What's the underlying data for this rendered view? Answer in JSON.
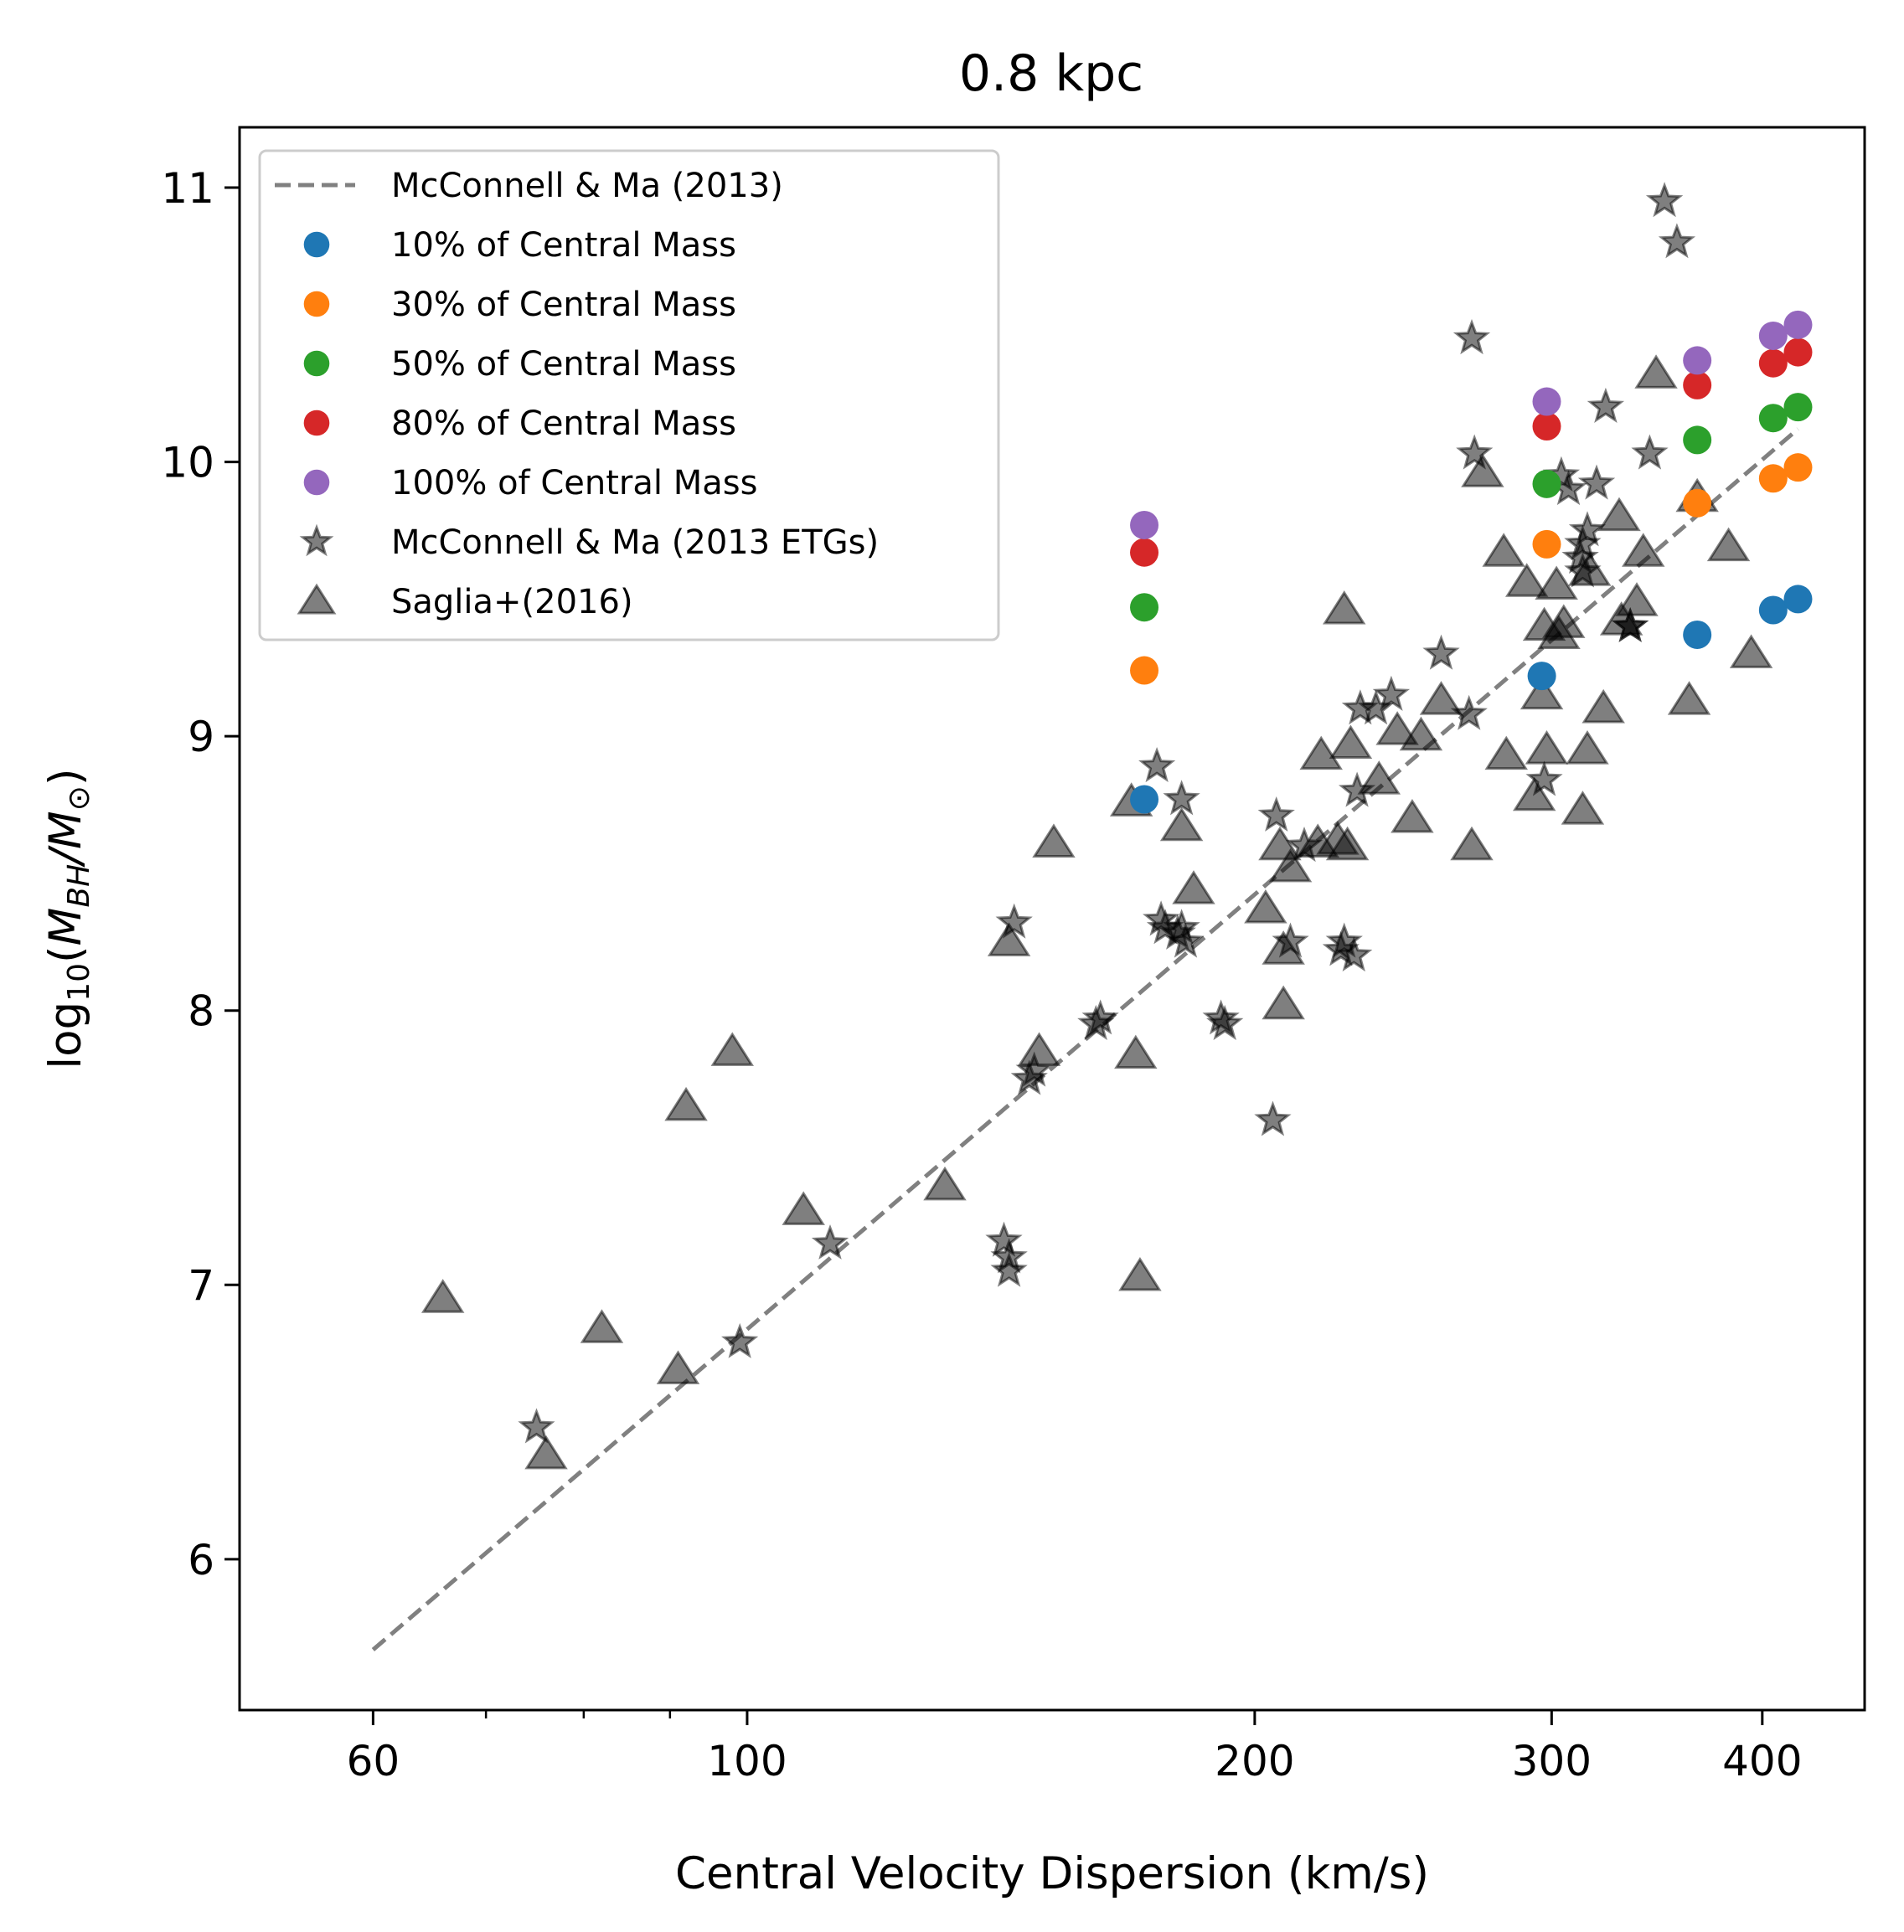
{
  "chart_data": {
    "type": "scatter",
    "title": "0.8 kpc",
    "xlabel": "Central Velocity Dispersion (km/s)",
    "ylabel": {
      "prefix": "log",
      "sub1": "10",
      "open": "(",
      "m1": "M",
      "sub2": "BH",
      "slash": "/",
      "m2": "M",
      "sub3": "⊙",
      "close": ")"
    },
    "x_scale": "log",
    "xlim": [
      50,
      460
    ],
    "ylim": [
      5.45,
      11.22
    ],
    "x_major_ticks": [
      {
        "value": 60,
        "label": "60"
      },
      {
        "value": 100,
        "label": "100"
      },
      {
        "value": 200,
        "label": "200"
      },
      {
        "value": 300,
        "label": "300"
      },
      {
        "value": 400,
        "label": "400"
      }
    ],
    "x_minor_ticks": [
      70,
      80,
      90
    ],
    "y_ticks": [
      {
        "value": 6,
        "label": "6"
      },
      {
        "value": 7,
        "label": "7"
      },
      {
        "value": 8,
        "label": "8"
      },
      {
        "value": 9,
        "label": "9"
      },
      {
        "value": 10,
        "label": "10"
      },
      {
        "value": 11,
        "label": "11"
      }
    ],
    "legend_position": "upper-left",
    "line": {
      "name": "McConnell & Ma (2013)",
      "style": "dashed",
      "color": "#808080",
      "x": [
        60,
        420
      ],
      "y": [
        5.67,
        10.12
      ]
    },
    "series": [
      {
        "name": "10% of Central Mass",
        "marker": "circle",
        "color": "#1f77b4",
        "x": [
          172,
          296,
          366,
          406,
          420
        ],
        "y": [
          8.77,
          9.22,
          9.37,
          9.46,
          9.5
        ]
      },
      {
        "name": "30% of Central Mass",
        "marker": "circle",
        "color": "#ff7f0e",
        "x": [
          172,
          298,
          366,
          406,
          420
        ],
        "y": [
          9.24,
          9.7,
          9.85,
          9.94,
          9.98
        ]
      },
      {
        "name": "50% of Central Mass",
        "marker": "circle",
        "color": "#2ca02c",
        "x": [
          172,
          298,
          366,
          406,
          420
        ],
        "y": [
          9.47,
          9.92,
          10.08,
          10.16,
          10.2
        ]
      },
      {
        "name": "80% of Central Mass",
        "marker": "circle",
        "color": "#d62728",
        "x": [
          172,
          298,
          366,
          406,
          420
        ],
        "y": [
          9.67,
          10.13,
          10.28,
          10.36,
          10.4
        ]
      },
      {
        "name": "100% of Central Mass",
        "marker": "circle",
        "color": "#9467bd",
        "x": [
          172,
          298,
          366,
          406,
          420
        ],
        "y": [
          9.77,
          10.22,
          10.37,
          10.46,
          10.5
        ]
      },
      {
        "name": "McConnell & Ma (2013 ETGs)",
        "marker": "star",
        "color": "#000000",
        "alpha": 0.5,
        "x": [
          75,
          112,
          99,
          143,
          143,
          142,
          144,
          147,
          148,
          162,
          161,
          176,
          177,
          180,
          182,
          181,
          192,
          191,
          175,
          181,
          205,
          210,
          214,
          206,
          226,
          225,
          229,
          230,
          231,
          236,
          241,
          258,
          268,
          269,
          270,
          297,
          304,
          307,
          312,
          313,
          313,
          315,
          319,
          323,
          334,
          334,
          343,
          350,
          356
        ],
        "y": [
          6.48,
          7.15,
          6.79,
          7.05,
          7.1,
          7.16,
          8.32,
          7.75,
          7.78,
          7.97,
          7.95,
          8.33,
          8.3,
          8.28,
          8.25,
          8.77,
          7.95,
          7.97,
          8.89,
          8.3,
          7.6,
          8.25,
          8.6,
          8.71,
          8.25,
          8.22,
          8.2,
          8.8,
          9.1,
          9.1,
          9.15,
          9.3,
          9.08,
          10.45,
          10.03,
          8.84,
          9.95,
          9.9,
          9.65,
          9.6,
          9.7,
          9.75,
          9.92,
          10.2,
          9.4,
          9.4,
          10.03,
          10.95,
          10.8
        ]
      },
      {
        "name": "Saglia+(2016)",
        "marker": "triangle",
        "color": "#000000",
        "alpha": 0.5,
        "x": [
          66,
          76,
          82,
          91,
          92,
          98,
          108,
          131,
          143,
          149,
          152,
          171,
          170,
          169,
          181,
          184,
          203,
          207,
          208,
          208,
          210,
          218,
          219,
          224,
          227,
          228,
          226,
          237,
          243,
          248,
          251,
          258,
          269,
          273,
          281,
          282,
          290,
          293,
          296,
          297,
          298,
          302,
          303,
          305,
          313,
          315,
          316,
          322,
          329,
          330,
          337,
          340,
          346,
          362,
          366,
          382,
          394
        ],
        "y": [
          6.95,
          6.38,
          6.84,
          6.69,
          7.65,
          7.85,
          7.27,
          7.36,
          8.25,
          7.85,
          8.61,
          7.03,
          7.84,
          8.76,
          8.67,
          8.44,
          8.37,
          8.6,
          8.22,
          8.02,
          8.52,
          8.61,
          8.93,
          8.62,
          8.6,
          8.97,
          9.46,
          8.84,
          9.02,
          8.7,
          9.0,
          9.13,
          8.6,
          9.96,
          9.67,
          8.93,
          9.56,
          8.78,
          9.15,
          9.4,
          8.95,
          9.55,
          9.37,
          9.41,
          8.73,
          8.95,
          9.6,
          9.1,
          9.8,
          9.42,
          9.49,
          9.67,
          10.32,
          9.13,
          9.87,
          9.69,
          9.3
        ]
      }
    ]
  }
}
